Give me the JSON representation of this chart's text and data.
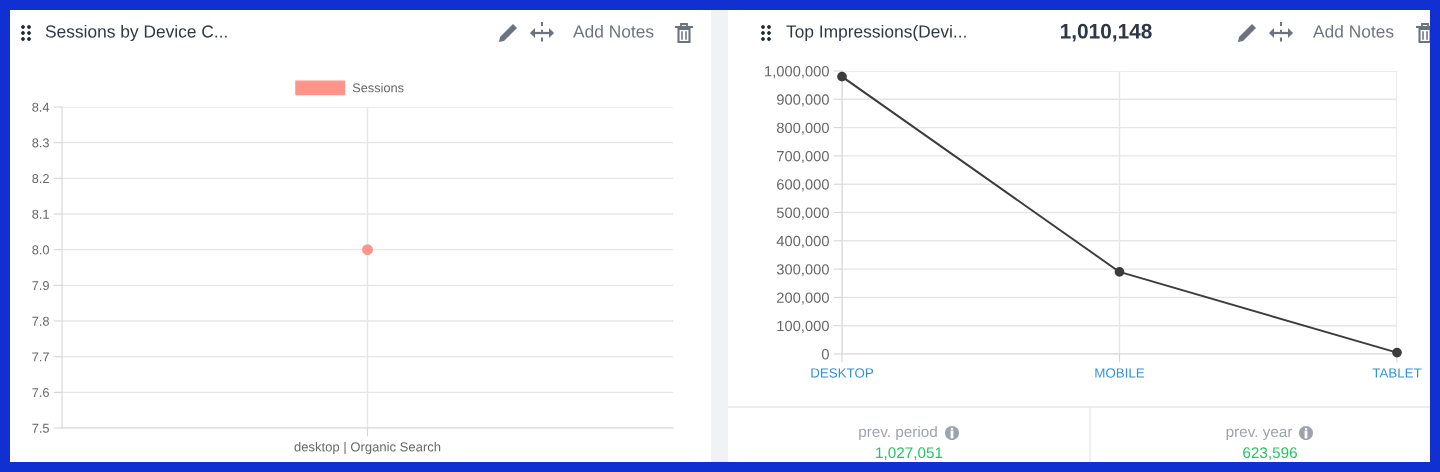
{
  "chart_data": [
    {
      "type": "line",
      "title": "Sessions by Device C...",
      "categories": [
        "desktop | Organic Search"
      ],
      "series": [
        {
          "name": "Sessions",
          "color": "#ff948a",
          "values": [
            8.0
          ]
        }
      ],
      "ylim": [
        7.5,
        8.4
      ],
      "yticks": [
        7.5,
        7.6,
        7.7,
        7.8,
        7.9,
        {
          "value": 8,
          "label": "8.0"
        },
        8.1,
        8.2,
        8.3,
        8.4
      ],
      "grid": true,
      "legend": "top",
      "marker": "circle",
      "annotations": [
        "Add Notes"
      ]
    },
    {
      "type": "line",
      "title": "Top Impressions(Devi...",
      "subtitle": "1,010,148",
      "categories": [
        "DESKTOP",
        "MOBILE",
        "TABLET"
      ],
      "series": [
        {
          "color": "#3c3c3c",
          "values": [
            980000,
            290000,
            5000
          ]
        }
      ],
      "ylim": [
        0,
        1000000
      ],
      "yticks": [
        0,
        {
          "value": 100000,
          "label": "100,000"
        },
        {
          "value": 200000,
          "label": "200,000"
        },
        {
          "value": 300000,
          "label": "300,000"
        },
        {
          "value": 400000,
          "label": "400,000"
        },
        {
          "value": 500000,
          "label": "500,000"
        },
        {
          "value": 600000,
          "label": "600,000"
        },
        {
          "value": 700000,
          "label": "700,000"
        },
        {
          "value": 800000,
          "label": "800,000"
        },
        {
          "value": 900000,
          "label": "900,000"
        },
        {
          "value": 1000000,
          "label": "1,000,000"
        }
      ],
      "grid": true,
      "marker": "circle",
      "annotations": [
        "Add Notes",
        "prev. period",
        "1,027,051",
        "prev. year",
        "623,596"
      ]
    }
  ]
}
